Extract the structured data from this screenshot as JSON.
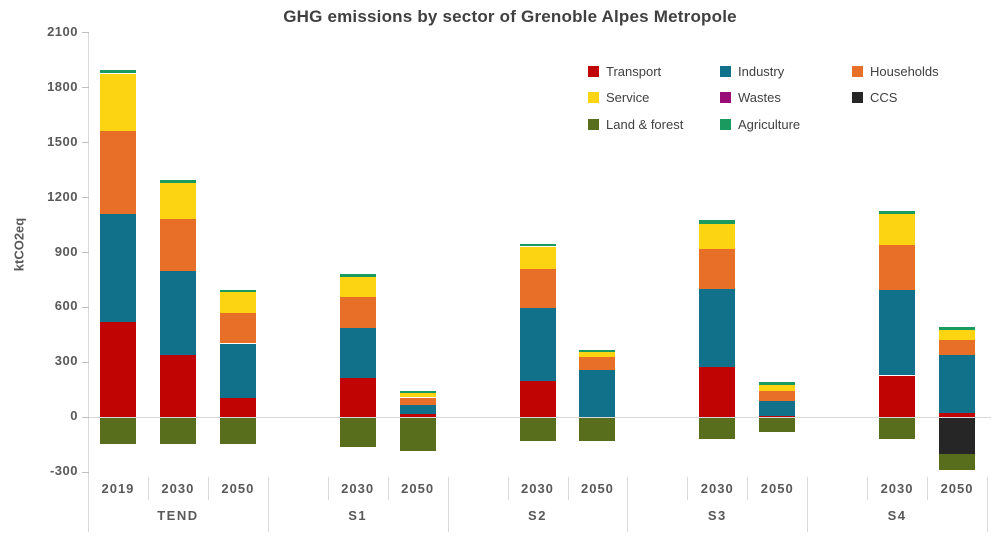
{
  "chart_data": {
    "type": "bar",
    "subtype": "stacked-bar-with-negative-values",
    "title": "GHG emissions by sector of Grenoble Alpes Metropole",
    "xlabel": "",
    "ylabel": "ktCO2eq",
    "ylim": [
      -300,
      2100
    ],
    "yticks": [
      2100,
      1800,
      1500,
      1200,
      900,
      600,
      300,
      0,
      -300
    ],
    "grid": "zero-line-only",
    "legend_position": "top-right",
    "legend_order": [
      "Transport",
      "Industry",
      "Households",
      "Service",
      "Wastes",
      "CCS",
      "Land & forest",
      "Agriculture"
    ],
    "series_colors": {
      "Transport": "#c00404",
      "Industry": "#11708a",
      "Households": "#e76f27",
      "Service": "#fcd411",
      "Wastes": "#9b0d76",
      "CCS": "#262626",
      "Land & forest": "#586e1d",
      "Agriculture": "#1b9a5f"
    },
    "stack_order_positive": [
      "Transport",
      "Industry",
      "Households",
      "Service",
      "Wastes",
      "Agriculture"
    ],
    "stack_order_negative": [
      "CCS",
      "Land & forest"
    ],
    "groups": [
      {
        "label": "TEND",
        "years": [
          "2019",
          "2030",
          "2050"
        ]
      },
      {
        "label": "S1",
        "years": [
          "2030",
          "2050"
        ]
      },
      {
        "label": "S2",
        "years": [
          "2030",
          "2050"
        ]
      },
      {
        "label": "S3",
        "years": [
          "2030",
          "2050"
        ]
      },
      {
        "label": "S4",
        "years": [
          "2030",
          "2050"
        ]
      }
    ],
    "bars": [
      {
        "group": "TEND",
        "year": "2019",
        "values": {
          "Transport": 515,
          "Industry": 590,
          "Households": 455,
          "Service": 315,
          "Wastes": 0,
          "Agriculture": 18,
          "CCS": 0,
          "Land & forest": -145
        }
      },
      {
        "group": "TEND",
        "year": "2030",
        "values": {
          "Transport": 335,
          "Industry": 460,
          "Households": 285,
          "Service": 195,
          "Wastes": 0,
          "Agriculture": 18,
          "CCS": 0,
          "Land & forest": -145
        }
      },
      {
        "group": "TEND",
        "year": "2050",
        "values": {
          "Transport": 105,
          "Industry": 295,
          "Households": 165,
          "Service": 115,
          "Wastes": 0,
          "Agriculture": 15,
          "CCS": 0,
          "Land & forest": -145
        }
      },
      {
        "group": "S1",
        "year": "2030",
        "values": {
          "Transport": 210,
          "Industry": 275,
          "Households": 170,
          "Service": 110,
          "Wastes": 0,
          "Agriculture": 15,
          "CCS": 0,
          "Land & forest": -160
        }
      },
      {
        "group": "S1",
        "year": "2050",
        "values": {
          "Transport": 15,
          "Industry": 50,
          "Households": 40,
          "Service": 25,
          "Wastes": 0,
          "Agriculture": 13,
          "CCS": 0,
          "Land & forest": -180
        }
      },
      {
        "group": "S2",
        "year": "2030",
        "values": {
          "Transport": 195,
          "Industry": 400,
          "Households": 215,
          "Service": 120,
          "Wastes": 0,
          "Agriculture": 16,
          "CCS": 0,
          "Land & forest": -130
        }
      },
      {
        "group": "S2",
        "year": "2050",
        "values": {
          "Transport": 0,
          "Industry": 255,
          "Households": 70,
          "Service": 27,
          "Wastes": 0,
          "Agriculture": 14,
          "CCS": 0,
          "Land & forest": -127
        }
      },
      {
        "group": "S3",
        "year": "2030",
        "values": {
          "Transport": 270,
          "Industry": 430,
          "Households": 215,
          "Service": 140,
          "Wastes": 0,
          "Agriculture": 18,
          "CCS": 0,
          "Land & forest": -115
        }
      },
      {
        "group": "S3",
        "year": "2050",
        "values": {
          "Transport": 5,
          "Industry": 80,
          "Households": 55,
          "Service": 35,
          "Wastes": 0,
          "Agriculture": 15,
          "CCS": 0,
          "Land & forest": -80
        }
      },
      {
        "group": "S4",
        "year": "2030",
        "values": {
          "Transport": 225,
          "Industry": 465,
          "Households": 250,
          "Service": 165,
          "Wastes": 0,
          "Agriculture": 18,
          "CCS": 0,
          "Land & forest": -115
        }
      },
      {
        "group": "S4",
        "year": "2050",
        "values": {
          "Transport": 20,
          "Industry": 315,
          "Households": 85,
          "Service": 55,
          "Wastes": 0,
          "Agriculture": 14,
          "CCS": -200,
          "Land & forest": -85
        }
      }
    ]
  }
}
